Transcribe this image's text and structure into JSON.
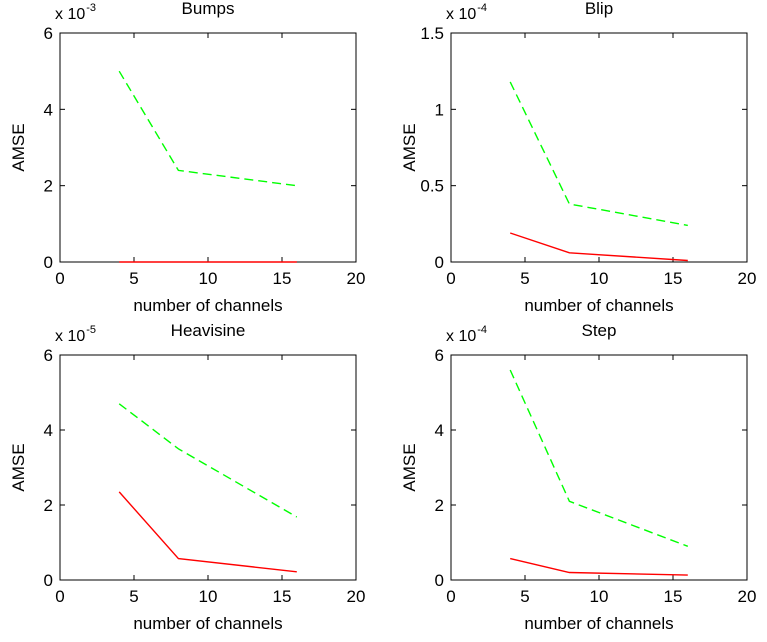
{
  "figure": {
    "xlabel": "number of channels",
    "ylabel": "AMSE"
  },
  "colors": {
    "solid_series": "#ff0000",
    "dashed_series": "#00ff00",
    "axes": "#000000"
  },
  "chart_data": [
    {
      "type": "line",
      "title": "Bumps",
      "xlabel": "number of channels",
      "ylabel": "AMSE",
      "y_scale_factor": "x 10",
      "y_scale_exponent": "-3",
      "xlim": [
        0,
        20
      ],
      "ylim": [
        0,
        6
      ],
      "xticks": [
        "0",
        "5",
        "10",
        "15",
        "20"
      ],
      "yticks": [
        "0",
        "2",
        "4",
        "6"
      ],
      "grid": false,
      "x": [
        4,
        8,
        16
      ],
      "series": [
        {
          "style": "dashed",
          "color": "#00ff00",
          "values": [
            5.0,
            2.4,
            2.0
          ]
        },
        {
          "style": "solid",
          "color": "#ff0000",
          "values": [
            0.0,
            0.0,
            0.0
          ]
        }
      ]
    },
    {
      "type": "line",
      "title": "Blip",
      "xlabel": "number of channels",
      "ylabel": "AMSE",
      "y_scale_factor": "x 10",
      "y_scale_exponent": "-4",
      "xlim": [
        0,
        20
      ],
      "ylim": [
        0,
        1.5
      ],
      "xticks": [
        "0",
        "5",
        "10",
        "15",
        "20"
      ],
      "yticks": [
        "0",
        "0.5",
        "1",
        "1.5"
      ],
      "grid": false,
      "x": [
        4,
        8,
        16
      ],
      "series": [
        {
          "style": "dashed",
          "color": "#00ff00",
          "values": [
            1.18,
            0.38,
            0.24
          ]
        },
        {
          "style": "solid",
          "color": "#ff0000",
          "values": [
            0.19,
            0.06,
            0.01
          ]
        }
      ]
    },
    {
      "type": "line",
      "title": "Heavisine",
      "xlabel": "number of channels",
      "ylabel": "AMSE",
      "y_scale_factor": "x 10",
      "y_scale_exponent": "-5",
      "xlim": [
        0,
        20
      ],
      "ylim": [
        0,
        6
      ],
      "xticks": [
        "0",
        "5",
        "10",
        "15",
        "20"
      ],
      "yticks": [
        "0",
        "2",
        "4",
        "6"
      ],
      "grid": false,
      "x": [
        4,
        8,
        16
      ],
      "series": [
        {
          "style": "dashed",
          "color": "#00ff00",
          "values": [
            4.7,
            3.5,
            1.68
          ]
        },
        {
          "style": "solid",
          "color": "#ff0000",
          "values": [
            2.35,
            0.57,
            0.22
          ]
        }
      ]
    },
    {
      "type": "line",
      "title": "Step",
      "xlabel": "number of channels",
      "ylabel": "AMSE",
      "y_scale_factor": "x 10",
      "y_scale_exponent": "-4",
      "xlim": [
        0,
        20
      ],
      "ylim": [
        0,
        6
      ],
      "xticks": [
        "0",
        "5",
        "10",
        "15",
        "20"
      ],
      "yticks": [
        "0",
        "2",
        "4",
        "6"
      ],
      "grid": false,
      "x": [
        4,
        8,
        16
      ],
      "series": [
        {
          "style": "dashed",
          "color": "#00ff00",
          "values": [
            5.6,
            2.1,
            0.9
          ]
        },
        {
          "style": "solid",
          "color": "#ff0000",
          "values": [
            0.57,
            0.2,
            0.13
          ]
        }
      ]
    }
  ]
}
